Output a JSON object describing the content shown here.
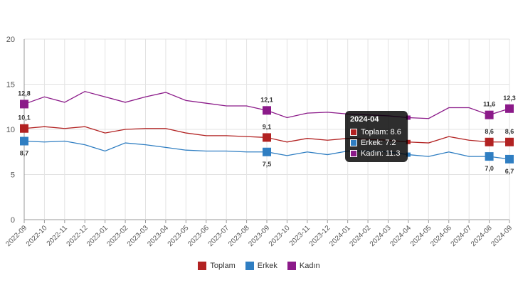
{
  "chart_data": {
    "type": "line",
    "categories": [
      "2022-09",
      "2022-10",
      "2022-11",
      "2022-12",
      "2023-01",
      "2023-02",
      "2023-03",
      "2023-04",
      "2023-05",
      "2023-06",
      "2023-07",
      "2023-08",
      "2023-09",
      "2023-10",
      "2023-11",
      "2023-12",
      "2024-01",
      "2024-02",
      "2024-03",
      "2024-04",
      "2024-05",
      "2024-06",
      "2024-07",
      "2024-08",
      "2024-09"
    ],
    "ylim": [
      0,
      20
    ],
    "yticks": [
      0,
      5,
      10,
      15,
      20
    ],
    "grid": true,
    "legend_position": "bottom",
    "series": [
      {
        "name": "Toplam",
        "color": "#b22222",
        "values": [
          10.1,
          10.3,
          10.1,
          10.3,
          9.6,
          10.0,
          10.1,
          10.1,
          9.6,
          9.3,
          9.3,
          9.2,
          9.1,
          8.6,
          9.0,
          8.8,
          9.0,
          8.9,
          8.8,
          8.6,
          8.5,
          9.2,
          8.8,
          8.6,
          8.6
        ]
      },
      {
        "name": "Erkek",
        "color": "#2f7ec2",
        "values": [
          8.7,
          8.6,
          8.7,
          8.3,
          7.6,
          8.5,
          8.3,
          8.0,
          7.7,
          7.6,
          7.6,
          7.5,
          7.5,
          7.1,
          7.5,
          7.2,
          7.6,
          7.6,
          7.5,
          7.2,
          7.0,
          7.5,
          7.0,
          7.0,
          6.7
        ]
      },
      {
        "name": "Kadın",
        "color": "#8b1a89",
        "values": [
          12.8,
          13.6,
          13.0,
          14.2,
          13.6,
          13.0,
          13.6,
          14.1,
          13.2,
          12.9,
          12.6,
          12.6,
          12.1,
          11.3,
          11.8,
          11.9,
          11.7,
          11.6,
          11.5,
          11.3,
          11.2,
          12.4,
          12.4,
          11.6,
          12.3
        ]
      }
    ],
    "highlights": [
      {
        "index": 0,
        "labels": [
          "10,1",
          "8,7",
          "12,8"
        ]
      },
      {
        "index": 12,
        "labels": [
          "9,1",
          "7,5",
          "12,1"
        ]
      },
      {
        "index": 23,
        "labels": [
          "8,6",
          "7,0",
          "11,6"
        ]
      },
      {
        "index": 24,
        "labels": [
          "8,6",
          "6,7",
          "12,3"
        ]
      }
    ],
    "tooltip": {
      "title": "2024-04",
      "rows": [
        "Toplam: 8.6",
        "Erkek: 7.2",
        "Kadın: 11.3"
      ]
    }
  }
}
